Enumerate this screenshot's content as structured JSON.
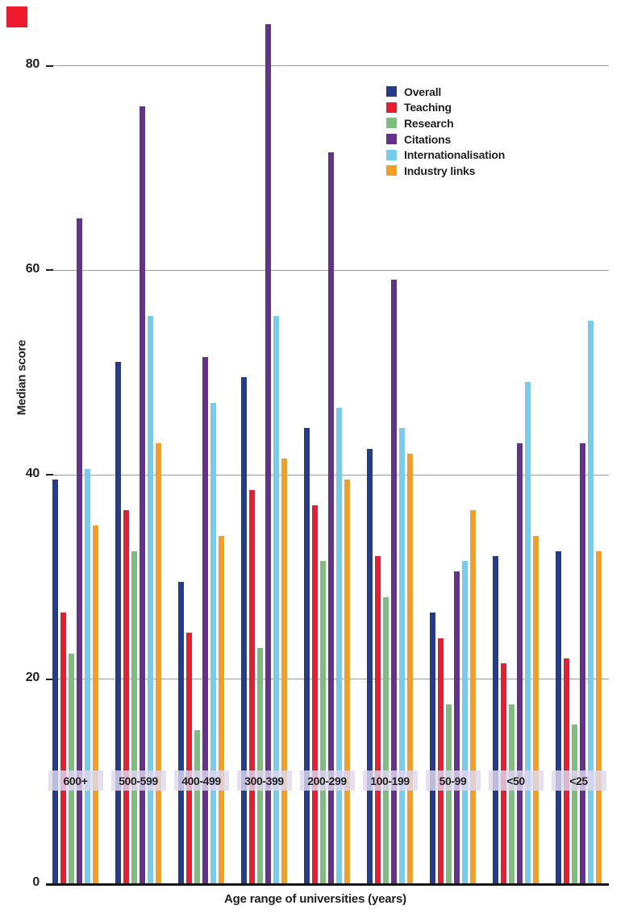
{
  "page": {
    "background": "#ffffff",
    "corner_square_color": "#ed1b2d"
  },
  "style": {
    "grid_color": "#9c9c9c",
    "axis_color": "#161616",
    "text_color": "#231f20",
    "band_color": "rgba(222,217,238,0.82)"
  },
  "chart_data": {
    "type": "bar",
    "title": "",
    "xlabel": "Age range of universities (years)",
    "ylabel": "Median score",
    "ylim": [
      0,
      85
    ],
    "yticks": [
      0,
      20,
      40,
      60,
      80
    ],
    "grid": true,
    "legend_position": "top-center",
    "categories": [
      "600+",
      "500-599",
      "400-499",
      "300-399",
      "200-299",
      "100-199",
      "50-99",
      "<50",
      "<25"
    ],
    "series": [
      {
        "name": "Overall",
        "color": "#233c8f",
        "values": [
          39.5,
          51,
          29.5,
          49.5,
          44.5,
          42.5,
          26.5,
          32,
          32.5
        ]
      },
      {
        "name": "Teaching",
        "color": "#ed1b2d",
        "values": [
          26.5,
          36.5,
          24.5,
          38.5,
          37,
          32,
          24,
          21.5,
          22
        ]
      },
      {
        "name": "Research",
        "color": "#7cbe7c",
        "values": [
          22.5,
          32.5,
          15,
          23,
          31.5,
          28,
          17.5,
          17.5,
          15.5
        ]
      },
      {
        "name": "Citations",
        "color": "#66308f",
        "values": [
          65,
          76,
          51.5,
          84,
          71.5,
          59,
          30.5,
          43,
          43
        ]
      },
      {
        "name": "Internationalisation",
        "color": "#72cef0",
        "values": [
          40.5,
          55.5,
          47,
          55.5,
          46.5,
          44.5,
          31.5,
          49,
          55
        ]
      },
      {
        "name": "Industry links",
        "color": "#f99d1c",
        "values": [
          35,
          43,
          34,
          41.5,
          39.5,
          42,
          36.5,
          34,
          32.5
        ]
      }
    ]
  }
}
